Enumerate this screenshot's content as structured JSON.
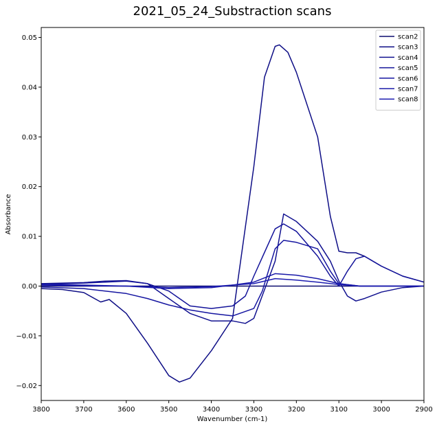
{
  "chart_data": {
    "type": "line",
    "title": "2021_05_24_Substraction scans",
    "xlabel": "Wavenumber (cm-1)",
    "ylabel": "Absorbance",
    "xlim": [
      3800,
      2900
    ],
    "ylim": [
      -0.023,
      0.052
    ],
    "x_inverted": true,
    "xticks": [
      3800,
      3700,
      3600,
      3500,
      3400,
      3300,
      3200,
      3100,
      3000,
      2900
    ],
    "yticks": [
      -0.02,
      -0.01,
      0.0,
      0.01,
      0.02,
      0.03,
      0.04,
      0.05
    ],
    "ytick_labels": [
      "−0.02",
      "−0.01",
      "0.00",
      "0.01",
      "0.02",
      "0.03",
      "0.04",
      "0.05"
    ],
    "grid": false,
    "legend_position": "top-right",
    "series": [
      {
        "name": "scan2",
        "color": "#0b0b6e",
        "x": [
          3800,
          3750,
          3700,
          3650,
          3600,
          3550,
          3500,
          3450,
          3400,
          3350,
          3300,
          3250,
          3200,
          3150,
          3100,
          3050,
          3000,
          2950,
          2900
        ],
        "y": [
          0.0,
          0.0,
          0.0,
          0.0,
          0.0,
          0.0,
          0.0,
          0.0,
          0.0,
          0.0,
          0.0,
          0.0,
          0.0,
          0.0,
          0.0,
          0.0,
          0.0,
          0.0,
          0.0
        ]
      },
      {
        "name": "scan3",
        "color": "#0d0d85",
        "x": [
          3800,
          3750,
          3700,
          3660,
          3640,
          3600,
          3550,
          3500,
          3475,
          3450,
          3400,
          3350,
          3300,
          3275,
          3250,
          3240,
          3220,
          3200,
          3150,
          3120,
          3100,
          3080,
          3060,
          3040,
          3000,
          2950,
          2900
        ],
        "y": [
          -0.0005,
          -0.0007,
          -0.0013,
          -0.0032,
          -0.0027,
          -0.0055,
          -0.0115,
          -0.018,
          -0.0193,
          -0.0185,
          -0.013,
          -0.0065,
          0.024,
          0.042,
          0.0482,
          0.0485,
          0.047,
          0.043,
          0.03,
          0.014,
          0.007,
          0.0067,
          0.0067,
          0.006,
          0.004,
          0.002,
          0.0008
        ]
      },
      {
        "name": "scan4",
        "color": "#10108f",
        "x": [
          3800,
          3700,
          3650,
          3600,
          3550,
          3500,
          3450,
          3400,
          3350,
          3320,
          3300,
          3250,
          3230,
          3200,
          3150,
          3120,
          3100,
          3080,
          3060,
          3040,
          3000,
          2950,
          2900
        ],
        "y": [
          0.0005,
          0.0007,
          0.001,
          0.0011,
          0.0005,
          -0.0025,
          -0.0055,
          -0.007,
          -0.007,
          -0.0075,
          -0.0065,
          0.005,
          0.0145,
          0.013,
          0.009,
          0.005,
          0.001,
          -0.002,
          -0.003,
          -0.0025,
          -0.0012,
          -0.0003,
          0.0
        ]
      },
      {
        "name": "scan5",
        "color": "#121299",
        "x": [
          3800,
          3700,
          3650,
          3600,
          3550,
          3500,
          3450,
          3400,
          3350,
          3320,
          3300,
          3250,
          3230,
          3200,
          3150,
          3120,
          3100,
          3080,
          3060,
          3040,
          3000,
          2950,
          2900
        ],
        "y": [
          0.0003,
          0.0006,
          0.0008,
          0.001,
          0.0005,
          -0.001,
          -0.004,
          -0.0045,
          -0.004,
          -0.002,
          0.002,
          0.0115,
          0.0125,
          0.011,
          0.006,
          0.002,
          0.0,
          0.003,
          0.0055,
          0.006,
          0.004,
          0.002,
          0.0008
        ]
      },
      {
        "name": "scan6",
        "color": "#1414a0",
        "x": [
          3800,
          3700,
          3600,
          3550,
          3500,
          3450,
          3400,
          3350,
          3300,
          3280,
          3250,
          3230,
          3200,
          3150,
          3120,
          3100,
          3050,
          3000,
          2950,
          2900
        ],
        "y": [
          -0.0002,
          -0.0005,
          -0.0015,
          -0.0025,
          -0.0038,
          -0.0048,
          -0.0055,
          -0.006,
          -0.0045,
          -0.001,
          0.0075,
          0.0092,
          0.0088,
          0.0075,
          0.003,
          0.0005,
          0.0,
          0.0,
          0.0,
          0.0
        ]
      },
      {
        "name": "scan7",
        "color": "#1818a8",
        "x": [
          3800,
          3700,
          3600,
          3500,
          3400,
          3350,
          3300,
          3250,
          3200,
          3150,
          3100,
          3050,
          3000,
          2950,
          2900
        ],
        "y": [
          0.0003,
          0.0002,
          0.0,
          -0.0005,
          -0.0003,
          0.0002,
          0.0008,
          0.0025,
          0.0022,
          0.0015,
          0.0005,
          0.0,
          0.0,
          0.0,
          0.0
        ]
      },
      {
        "name": "scan8",
        "color": "#1c1cb0",
        "x": [
          3800,
          3700,
          3600,
          3500,
          3400,
          3350,
          3300,
          3250,
          3200,
          3150,
          3100,
          3050,
          3000,
          2950,
          2900
        ],
        "y": [
          0.0002,
          0.0001,
          0.0,
          -0.0003,
          -0.0001,
          0.0002,
          0.0005,
          0.0015,
          0.0012,
          0.0008,
          0.0003,
          0.0,
          0.0,
          0.0,
          0.0
        ]
      }
    ]
  }
}
